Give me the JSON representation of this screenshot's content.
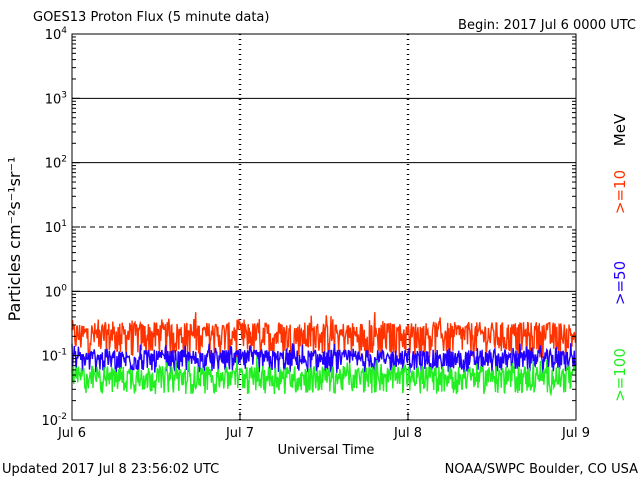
{
  "chart_data": {
    "type": "line",
    "title": "GOES13 Proton Flux (5 minute data)",
    "begin": "Begin: 2017 Jul 6 0000 UTC",
    "xlabel": "Universal Time",
    "ylabel": "Particles cm⁻²s⁻¹sr⁻¹",
    "y_scale": "log",
    "ylim": [
      0.01,
      10000
    ],
    "y_ticks": [
      {
        "value": 0.01,
        "base": "10",
        "exp": "-2"
      },
      {
        "value": 0.1,
        "base": "10",
        "exp": "-1"
      },
      {
        "value": 1,
        "base": "10",
        "exp": "0"
      },
      {
        "value": 10,
        "base": "10",
        "exp": "1"
      },
      {
        "value": 100,
        "base": "10",
        "exp": "2"
      },
      {
        "value": 1000,
        "base": "10",
        "exp": "3"
      },
      {
        "value": 10000,
        "base": "10",
        "exp": "4"
      }
    ],
    "x_ticks": [
      "Jul 6",
      "Jul 7",
      "Jul 8",
      "Jul 9"
    ],
    "xlim_days": [
      0,
      3
    ],
    "threshold_lines": [
      {
        "value": 10,
        "style": "dashed"
      },
      {
        "value": 1,
        "style": "solid"
      },
      {
        "value": 100,
        "style": "solid"
      },
      {
        "value": 1000,
        "style": "solid"
      }
    ],
    "unit_label": "MeV",
    "series": [
      {
        "name": ">=10",
        "color": "#ff3300",
        "baseline": 0.2,
        "spread": 0.12
      },
      {
        "name": ">=50",
        "color": "#2200ff",
        "baseline": 0.085,
        "spread": 0.035
      },
      {
        "name": ">=100",
        "color": "#22ee22",
        "baseline": 0.045,
        "spread": 0.022
      }
    ]
  },
  "footer": {
    "updated": "Updated 2017 Jul  8 23:56:02 UTC",
    "credit": "NOAA/SWPC Boulder, CO USA"
  }
}
